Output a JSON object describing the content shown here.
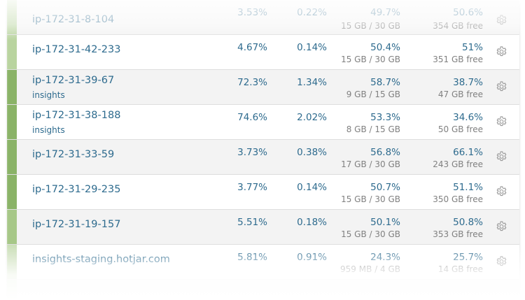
{
  "colors": {
    "bar_strong": "#8ab367",
    "bar_light": "#b9d49f",
    "text_link": "#2e6b8e",
    "text_muted": "#808080",
    "gear": "#9a9a9a"
  },
  "rows": [
    {
      "host": "ip-172-31-8-104",
      "sub": "",
      "cpu": "3.53%",
      "load": "0.22%",
      "mem": "49.7%",
      "mem_detail": "15 GB / 30 GB",
      "disk": "50.6%",
      "disk_detail": "354 GB free",
      "icon": "gear-icon"
    },
    {
      "host": "ip-172-31-42-233",
      "sub": "",
      "cpu": "4.67%",
      "load": "0.14%",
      "mem": "50.4%",
      "mem_detail": "15 GB / 30 GB",
      "disk": "51%",
      "disk_detail": "351 GB free",
      "icon": "gear-icon"
    },
    {
      "host": "ip-172-31-39-67",
      "sub": "insights",
      "cpu": "72.3%",
      "load": "1.34%",
      "mem": "58.7%",
      "mem_detail": "9 GB / 15 GB",
      "disk": "38.7%",
      "disk_detail": "47 GB free",
      "icon": "gear-icon"
    },
    {
      "host": "ip-172-31-38-188",
      "sub": "insights",
      "cpu": "74.6%",
      "load": "2.02%",
      "mem": "53.3%",
      "mem_detail": "8 GB / 15 GB",
      "disk": "34.6%",
      "disk_detail": "50 GB free",
      "icon": "gear-icon"
    },
    {
      "host": "ip-172-31-33-59",
      "sub": "",
      "cpu": "3.73%",
      "load": "0.38%",
      "mem": "56.8%",
      "mem_detail": "17 GB / 30 GB",
      "disk": "66.1%",
      "disk_detail": "243 GB free",
      "icon": "gear-icon"
    },
    {
      "host": "ip-172-31-29-235",
      "sub": "",
      "cpu": "3.77%",
      "load": "0.14%",
      "mem": "50.7%",
      "mem_detail": "15 GB / 30 GB",
      "disk": "51.1%",
      "disk_detail": "350 GB free",
      "icon": "gear-icon"
    },
    {
      "host": "ip-172-31-19-157",
      "sub": "",
      "cpu": "5.51%",
      "load": "0.18%",
      "mem": "50.1%",
      "mem_detail": "15 GB / 30 GB",
      "disk": "50.8%",
      "disk_detail": "353 GB free",
      "icon": "gear-icon"
    },
    {
      "host": "insights-staging.hotjar.com",
      "sub": "",
      "cpu": "5.81%",
      "load": "0.91%",
      "mem": "24.3%",
      "mem_detail": "959 MB / 4 GB",
      "disk": "25.7%",
      "disk_detail": "14 GB free",
      "icon": "gear-icon"
    }
  ]
}
